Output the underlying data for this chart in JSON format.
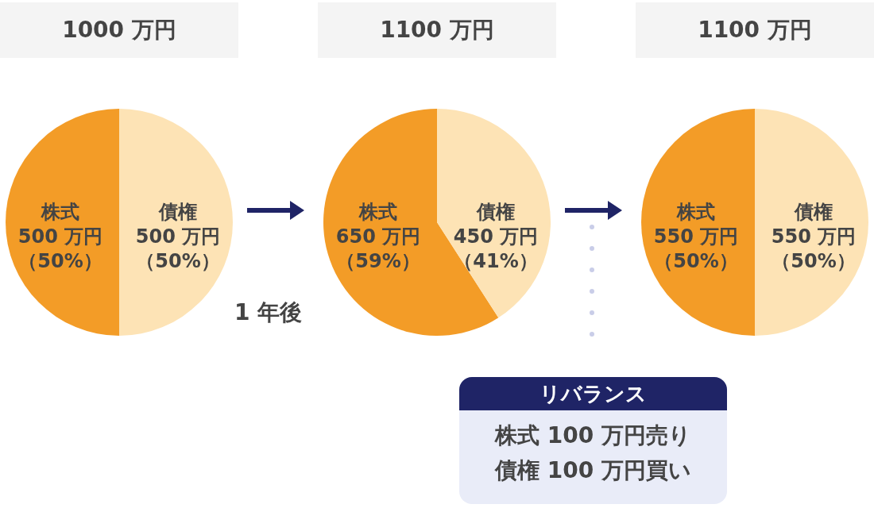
{
  "chart_data": [
    {
      "type": "pie",
      "title": "1000 万円",
      "categories": [
        "株式",
        "債権"
      ],
      "values": [
        500,
        500
      ],
      "value_labels": [
        "500 万円（50%）",
        "500 万円（50%）"
      ],
      "colors": [
        "#f39c27",
        "#fde3b5"
      ],
      "annotations": [
        "1 年後"
      ]
    },
    {
      "type": "pie",
      "title": "1100 万円",
      "categories": [
        "株式",
        "債権"
      ],
      "values": [
        650,
        450
      ],
      "value_labels": [
        "650 万円（59%）",
        "450 万円（41%）"
      ],
      "colors": [
        "#f39c27",
        "#fde3b5"
      ]
    },
    {
      "type": "pie",
      "title": "1100 万円",
      "categories": [
        "株式",
        "債権"
      ],
      "values": [
        550,
        550
      ],
      "value_labels": [
        "550 万円（50%）",
        "550 万円（50%）"
      ],
      "colors": [
        "#f39c27",
        "#fde3b5"
      ]
    },
    {
      "type": "other",
      "title": "リバランス",
      "annotations": [
        "株式 100 万円売り",
        "債権 100 万円買い"
      ]
    }
  ]
}
